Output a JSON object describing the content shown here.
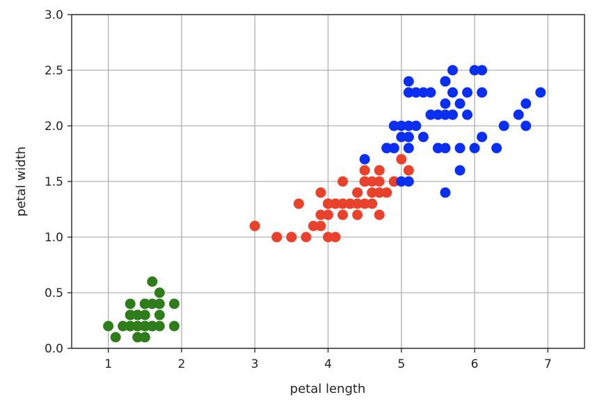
{
  "chart_data": {
    "type": "scatter",
    "xlabel": "petal length",
    "ylabel": "petal width",
    "xlim": [
      0.5,
      7.5
    ],
    "ylim": [
      0.0,
      3.0
    ],
    "xticks": [
      1,
      2,
      3,
      4,
      5,
      6,
      7
    ],
    "yticks": [
      0.0,
      0.5,
      1.0,
      1.5,
      2.0,
      2.5,
      3.0
    ],
    "xtick_labels": [
      "1",
      "2",
      "3",
      "4",
      "5",
      "6",
      "7"
    ],
    "ytick_labels": [
      "0.0",
      "0.5",
      "1.0",
      "1.5",
      "2.0",
      "2.5",
      "3.0"
    ],
    "grid": true,
    "series": [
      {
        "color": "#2e7d1a",
        "points": [
          [
            1.4,
            0.2
          ],
          [
            1.4,
            0.2
          ],
          [
            1.3,
            0.2
          ],
          [
            1.5,
            0.2
          ],
          [
            1.4,
            0.2
          ],
          [
            1.7,
            0.4
          ],
          [
            1.4,
            0.3
          ],
          [
            1.5,
            0.2
          ],
          [
            1.4,
            0.2
          ],
          [
            1.5,
            0.1
          ],
          [
            1.5,
            0.2
          ],
          [
            1.6,
            0.2
          ],
          [
            1.4,
            0.1
          ],
          [
            1.1,
            0.1
          ],
          [
            1.2,
            0.2
          ],
          [
            1.5,
            0.4
          ],
          [
            1.3,
            0.4
          ],
          [
            1.4,
            0.3
          ],
          [
            1.7,
            0.3
          ],
          [
            1.5,
            0.3
          ],
          [
            1.7,
            0.2
          ],
          [
            1.5,
            0.4
          ],
          [
            1.0,
            0.2
          ],
          [
            1.7,
            0.5
          ],
          [
            1.9,
            0.2
          ],
          [
            1.6,
            0.2
          ],
          [
            1.6,
            0.4
          ],
          [
            1.5,
            0.2
          ],
          [
            1.4,
            0.2
          ],
          [
            1.6,
            0.2
          ],
          [
            1.6,
            0.2
          ],
          [
            1.5,
            0.4
          ],
          [
            1.5,
            0.1
          ],
          [
            1.4,
            0.2
          ],
          [
            1.5,
            0.2
          ],
          [
            1.2,
            0.2
          ],
          [
            1.3,
            0.2
          ],
          [
            1.4,
            0.1
          ],
          [
            1.3,
            0.2
          ],
          [
            1.5,
            0.2
          ],
          [
            1.3,
            0.3
          ],
          [
            1.3,
            0.3
          ],
          [
            1.3,
            0.2
          ],
          [
            1.6,
            0.6
          ],
          [
            1.9,
            0.4
          ],
          [
            1.4,
            0.3
          ],
          [
            1.6,
            0.2
          ],
          [
            1.4,
            0.2
          ],
          [
            1.5,
            0.2
          ],
          [
            1.4,
            0.2
          ]
        ]
      },
      {
        "color": "#e8412c",
        "points": [
          [
            4.7,
            1.4
          ],
          [
            4.5,
            1.5
          ],
          [
            4.9,
            1.5
          ],
          [
            4.0,
            1.3
          ],
          [
            4.6,
            1.5
          ],
          [
            4.5,
            1.3
          ],
          [
            4.7,
            1.6
          ],
          [
            3.3,
            1.0
          ],
          [
            4.6,
            1.3
          ],
          [
            3.9,
            1.4
          ],
          [
            3.5,
            1.0
          ],
          [
            4.2,
            1.5
          ],
          [
            4.0,
            1.0
          ],
          [
            4.7,
            1.4
          ],
          [
            3.6,
            1.3
          ],
          [
            4.4,
            1.4
          ],
          [
            4.5,
            1.5
          ],
          [
            4.1,
            1.0
          ],
          [
            4.5,
            1.5
          ],
          [
            3.9,
            1.1
          ],
          [
            4.8,
            1.8
          ],
          [
            4.0,
            1.3
          ],
          [
            4.9,
            1.5
          ],
          [
            4.7,
            1.2
          ],
          [
            4.3,
            1.3
          ],
          [
            4.4,
            1.4
          ],
          [
            4.8,
            1.4
          ],
          [
            5.0,
            1.7
          ],
          [
            4.5,
            1.5
          ],
          [
            3.5,
            1.0
          ],
          [
            3.8,
            1.1
          ],
          [
            3.7,
            1.0
          ],
          [
            3.9,
            1.2
          ],
          [
            5.1,
            1.6
          ],
          [
            4.5,
            1.5
          ],
          [
            4.5,
            1.6
          ],
          [
            4.7,
            1.5
          ],
          [
            4.4,
            1.3
          ],
          [
            4.1,
            1.3
          ],
          [
            4.0,
            1.3
          ],
          [
            4.4,
            1.2
          ],
          [
            4.6,
            1.4
          ],
          [
            4.0,
            1.2
          ],
          [
            3.3,
            1.0
          ],
          [
            4.2,
            1.3
          ],
          [
            4.2,
            1.2
          ],
          [
            4.2,
            1.3
          ],
          [
            4.3,
            1.3
          ],
          [
            3.0,
            1.1
          ],
          [
            4.1,
            1.3
          ]
        ]
      },
      {
        "color": "#0a2ff0",
        "points": [
          [
            6.0,
            2.5
          ],
          [
            5.1,
            1.9
          ],
          [
            5.9,
            2.1
          ],
          [
            5.6,
            1.8
          ],
          [
            5.8,
            2.2
          ],
          [
            6.6,
            2.1
          ],
          [
            4.5,
            1.7
          ],
          [
            6.3,
            1.8
          ],
          [
            5.8,
            1.8
          ],
          [
            6.1,
            2.5
          ],
          [
            5.1,
            2.0
          ],
          [
            5.3,
            1.9
          ],
          [
            5.5,
            2.1
          ],
          [
            5.0,
            2.0
          ],
          [
            5.1,
            2.4
          ],
          [
            5.3,
            2.3
          ],
          [
            5.5,
            1.8
          ],
          [
            6.7,
            2.2
          ],
          [
            6.9,
            2.3
          ],
          [
            5.0,
            1.5
          ],
          [
            5.7,
            2.3
          ],
          [
            4.9,
            2.0
          ],
          [
            6.7,
            2.0
          ],
          [
            4.9,
            1.8
          ],
          [
            5.7,
            2.1
          ],
          [
            6.0,
            1.8
          ],
          [
            4.8,
            1.8
          ],
          [
            4.9,
            1.8
          ],
          [
            5.6,
            2.1
          ],
          [
            5.8,
            1.6
          ],
          [
            6.1,
            1.9
          ],
          [
            6.4,
            2.0
          ],
          [
            5.6,
            2.2
          ],
          [
            5.1,
            1.5
          ],
          [
            5.6,
            1.4
          ],
          [
            6.1,
            2.3
          ],
          [
            5.6,
            2.4
          ],
          [
            5.5,
            1.8
          ],
          [
            4.8,
            1.8
          ],
          [
            5.4,
            2.1
          ],
          [
            5.6,
            2.4
          ],
          [
            5.1,
            2.3
          ],
          [
            5.1,
            1.9
          ],
          [
            5.9,
            2.3
          ],
          [
            5.7,
            2.5
          ],
          [
            5.2,
            2.3
          ],
          [
            5.0,
            1.9
          ],
          [
            5.2,
            2.0
          ],
          [
            5.4,
            2.3
          ],
          [
            5.1,
            1.8
          ]
        ]
      }
    ]
  }
}
